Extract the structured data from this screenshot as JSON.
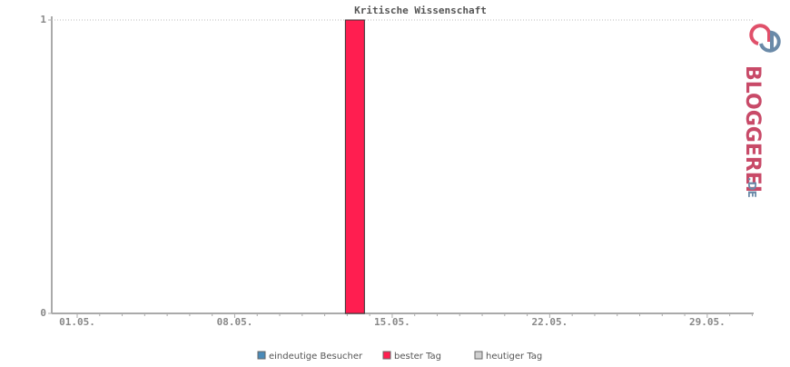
{
  "chart_data": {
    "type": "bar",
    "title": "Kritische Wissenschaft",
    "categories": [
      "01.05.",
      null,
      null,
      null,
      null,
      null,
      null,
      "08.05.",
      null,
      null,
      null,
      null,
      null,
      null,
      "15.05.",
      null,
      null,
      null,
      null,
      null,
      null,
      "22.05.",
      null,
      null,
      null,
      null,
      null,
      null,
      "29.05.",
      null,
      null
    ],
    "series": [
      {
        "name": "eindeutige Besucher",
        "color": "#4a8ab8",
        "values": [
          0,
          0,
          0,
          0,
          0,
          0,
          0,
          0,
          0,
          0,
          0,
          0,
          0,
          0,
          0,
          0,
          0,
          0,
          0,
          0,
          0,
          0,
          0,
          0,
          0,
          0,
          0,
          0,
          0,
          0,
          0
        ]
      },
      {
        "name": "bester Tag",
        "color": "#ff1e50",
        "values": [
          null,
          null,
          null,
          null,
          null,
          null,
          null,
          null,
          null,
          null,
          null,
          null,
          1,
          null,
          null,
          null,
          null,
          null,
          null,
          null,
          null,
          null,
          null,
          null,
          null,
          null,
          null,
          null,
          null,
          null,
          null
        ]
      },
      {
        "name": "heutiger Tag",
        "color": "#d0d0d0",
        "values": [
          null,
          null,
          null,
          null,
          null,
          null,
          null,
          null,
          null,
          null,
          null,
          null,
          null,
          null,
          null,
          null,
          null,
          null,
          null,
          null,
          null,
          null,
          null,
          null,
          null,
          null,
          null,
          null,
          null,
          null,
          null
        ]
      }
    ],
    "ylim": [
      0,
      1
    ],
    "yticks": [
      0,
      1
    ],
    "grid": true
  },
  "logo": {
    "text": "BLOGGEREI",
    "suffix": ".DE"
  }
}
